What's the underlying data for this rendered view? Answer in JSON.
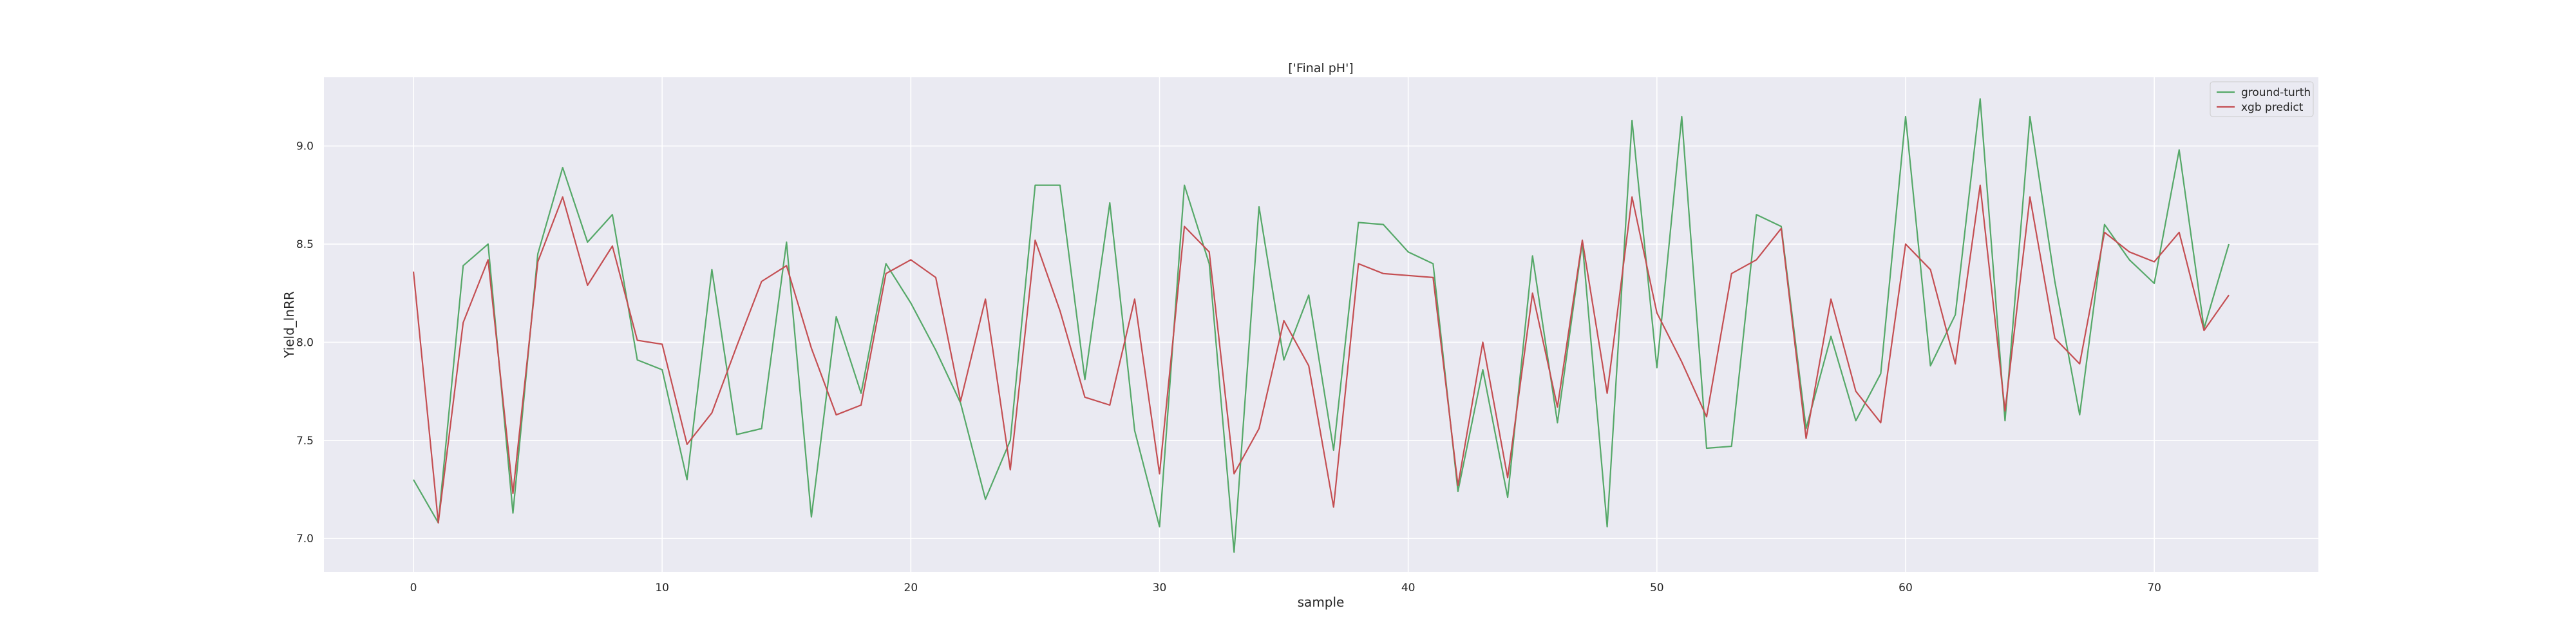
{
  "chart_data": {
    "type": "line",
    "title": "['Final pH']",
    "xlabel": "sample",
    "ylabel": "Yield_lnRR",
    "xlim": [
      -3.6,
      76.6
    ],
    "ylim": [
      6.83,
      9.35
    ],
    "xticks": [
      0,
      10,
      20,
      30,
      40,
      50,
      60,
      70
    ],
    "xtick_labels": [
      "0",
      "10",
      "20",
      "30",
      "40",
      "50",
      "60",
      "70"
    ],
    "yticks": [
      7.0,
      7.5,
      8.0,
      8.5,
      9.0
    ],
    "ytick_labels": [
      "7.0",
      "7.5",
      "8.0",
      "8.5",
      "9.0"
    ],
    "grid": true,
    "legend_position": "upper right",
    "colors": {
      "background": "#eaeaf2",
      "grid": "#ffffff",
      "ground_truth": "#55a868",
      "xgb": "#c44e52"
    },
    "x": [
      0,
      1,
      2,
      3,
      4,
      5,
      6,
      7,
      8,
      9,
      10,
      11,
      12,
      13,
      14,
      15,
      16,
      17,
      18,
      19,
      20,
      21,
      22,
      23,
      24,
      25,
      26,
      27,
      28,
      29,
      30,
      31,
      32,
      33,
      34,
      35,
      36,
      37,
      38,
      39,
      40,
      41,
      42,
      43,
      44,
      45,
      46,
      47,
      48,
      49,
      50,
      51,
      52,
      53,
      54,
      55,
      56,
      57,
      58,
      59,
      60,
      61,
      62,
      63,
      64,
      65,
      66,
      67,
      68,
      69,
      70,
      71,
      72,
      73
    ],
    "series": [
      {
        "name": "ground-turth",
        "color": "#55a868",
        "values": [
          7.3,
          7.08,
          8.39,
          8.5,
          7.13,
          8.45,
          8.89,
          8.51,
          8.65,
          7.91,
          7.86,
          7.3,
          8.37,
          7.53,
          7.56,
          8.51,
          7.11,
          8.13,
          7.74,
          8.4,
          8.2,
          7.96,
          7.69,
          7.2,
          7.5,
          8.8,
          8.8,
          7.81,
          8.71,
          7.55,
          7.06,
          8.8,
          8.4,
          6.93,
          8.69,
          7.91,
          8.24,
          7.45,
          8.61,
          8.6,
          8.46,
          8.4,
          7.24,
          7.86,
          7.21,
          8.44,
          7.59,
          8.51,
          7.06,
          9.13,
          7.87,
          9.15,
          7.46,
          7.47,
          8.65,
          8.59,
          7.56,
          8.03,
          7.6,
          7.84,
          9.15,
          7.88,
          8.14,
          9.24,
          7.6,
          9.15,
          8.31,
          7.63,
          8.6,
          8.42,
          8.3,
          8.98,
          8.07,
          8.5
        ]
      },
      {
        "name": "xgb predict",
        "color": "#c44e52",
        "values": [
          8.36,
          7.08,
          8.1,
          8.42,
          7.23,
          8.41,
          8.74,
          8.29,
          8.49,
          8.01,
          7.99,
          7.48,
          7.64,
          7.98,
          8.31,
          8.39,
          7.97,
          7.63,
          7.68,
          8.35,
          8.42,
          8.33,
          7.7,
          8.22,
          7.35,
          8.52,
          8.16,
          7.72,
          7.68,
          8.22,
          7.33,
          8.59,
          8.46,
          7.33,
          7.56,
          8.11,
          7.88,
          7.16,
          8.4,
          8.35,
          8.34,
          8.33,
          7.27,
          8.0,
          7.31,
          8.25,
          7.67,
          8.52,
          7.74,
          8.74,
          8.15,
          7.9,
          7.62,
          8.35,
          8.42,
          8.58,
          7.51,
          8.22,
          7.75,
          7.59,
          8.5,
          8.37,
          7.89,
          8.8,
          7.65,
          8.74,
          8.02,
          7.89,
          8.56,
          8.46,
          8.41,
          8.56,
          8.06,
          8.24
        ]
      }
    ]
  }
}
